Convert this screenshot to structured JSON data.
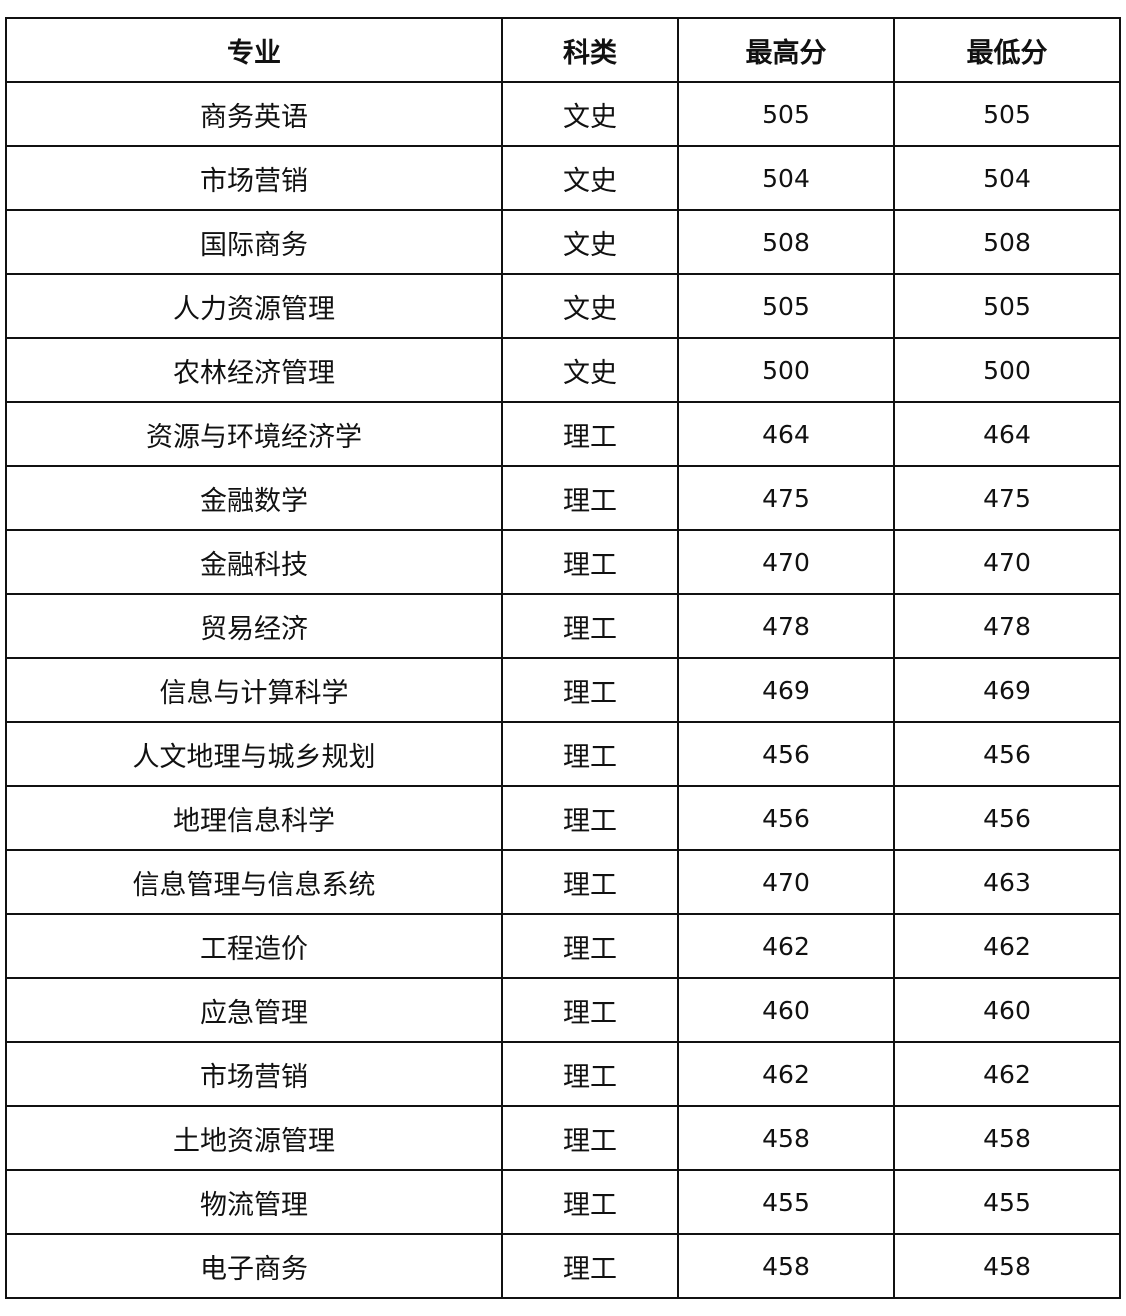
{
  "table": {
    "headers": [
      "专业",
      "科类",
      "最高分",
      "最低分"
    ],
    "rows": [
      [
        "商务英语",
        "文史",
        "505",
        "505"
      ],
      [
        "市场营销",
        "文史",
        "504",
        "504"
      ],
      [
        "国际商务",
        "文史",
        "508",
        "508"
      ],
      [
        "人力资源管理",
        "文史",
        "505",
        "505"
      ],
      [
        "农林经济管理",
        "文史",
        "500",
        "500"
      ],
      [
        "资源与环境经济学",
        "理工",
        "464",
        "464"
      ],
      [
        "金融数学",
        "理工",
        "475",
        "475"
      ],
      [
        "金融科技",
        "理工",
        "470",
        "470"
      ],
      [
        "贸易经济",
        "理工",
        "478",
        "478"
      ],
      [
        "信息与计算科学",
        "理工",
        "469",
        "469"
      ],
      [
        "人文地理与城乡规划",
        "理工",
        "456",
        "456"
      ],
      [
        "地理信息科学",
        "理工",
        "456",
        "456"
      ],
      [
        "信息管理与信息系统",
        "理工",
        "470",
        "463"
      ],
      [
        "工程造价",
        "理工",
        "462",
        "462"
      ],
      [
        "应急管理",
        "理工",
        "460",
        "460"
      ],
      [
        "市场营销",
        "理工",
        "462",
        "462"
      ],
      [
        "土地资源管理",
        "理工",
        "458",
        "458"
      ],
      [
        "物流管理",
        "理工",
        "455",
        "455"
      ],
      [
        "电子商务",
        "理工",
        "458",
        "458"
      ]
    ]
  }
}
